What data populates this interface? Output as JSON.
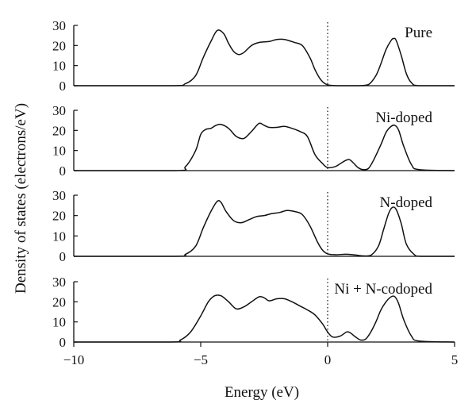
{
  "chart_data": [
    {
      "type": "line",
      "label": "Pure",
      "xlim": [
        -10,
        5
      ],
      "ylim": [
        0,
        30
      ],
      "yticks": [
        0,
        10,
        20,
        30
      ],
      "x": [
        -10,
        -6.2,
        -5.6,
        -5.2,
        -4.9,
        -4.6,
        -4.35,
        -4.1,
        -3.9,
        -3.7,
        -3.5,
        -3.3,
        -3.0,
        -2.7,
        -2.3,
        -2.0,
        -1.7,
        -1.3,
        -1.0,
        -0.7,
        -0.5,
        -0.3,
        -0.1,
        0.1,
        0.4,
        0.8,
        1.2,
        1.6,
        1.9,
        2.1,
        2.3,
        2.5,
        2.6,
        2.7,
        2.9,
        3.1,
        3.3,
        3.6,
        5
      ],
      "values": [
        0,
        0,
        1,
        5,
        14,
        22,
        27.5,
        26,
        21,
        17,
        15.5,
        16.5,
        20,
        21.5,
        22,
        23,
        23,
        21.5,
        20,
        14,
        8,
        3.5,
        1,
        0.2,
        0,
        0,
        0,
        0.5,
        5,
        11,
        18,
        22.5,
        23.5,
        22.5,
        15,
        6,
        1.5,
        0,
        0
      ]
    },
    {
      "type": "line",
      "label": "Ni-doped",
      "xlim": [
        -10,
        5
      ],
      "ylim": [
        0,
        30
      ],
      "yticks": [
        0,
        10,
        20,
        30
      ],
      "x": [
        -10,
        -6.0,
        -5.6,
        -5.2,
        -5.0,
        -4.8,
        -4.6,
        -4.4,
        -4.2,
        -3.9,
        -3.6,
        -3.3,
        -3.0,
        -2.7,
        -2.5,
        -2.3,
        -2.0,
        -1.7,
        -1.4,
        -1.1,
        -0.8,
        -0.5,
        -0.2,
        0.0,
        0.3,
        0.5,
        0.7,
        0.85,
        1.0,
        1.2,
        1.4,
        1.6,
        1.8,
        2.1,
        2.3,
        2.5,
        2.65,
        2.8,
        3.0,
        3.3,
        3.6,
        5
      ],
      "values": [
        0,
        0,
        2,
        10,
        18,
        20.5,
        21,
        22.5,
        23,
        21,
        17,
        16,
        19.5,
        23.5,
        22.5,
        21.5,
        21.5,
        22,
        21,
        19.5,
        17,
        8,
        3.5,
        1.5,
        2,
        3.5,
        5,
        5.5,
        4,
        1.5,
        0.5,
        1,
        5,
        13,
        19,
        22,
        22.5,
        20,
        12,
        3,
        0.5,
        0
      ]
    },
    {
      "type": "line",
      "label": "N-doped",
      "xlim": [
        -10,
        5
      ],
      "ylim": [
        0,
        30
      ],
      "yticks": [
        0,
        10,
        20,
        30
      ],
      "x": [
        -10,
        -6.0,
        -5.6,
        -5.2,
        -4.9,
        -4.6,
        -4.35,
        -4.2,
        -4.0,
        -3.7,
        -3.4,
        -3.1,
        -2.8,
        -2.5,
        -2.2,
        -1.9,
        -1.6,
        -1.3,
        -1.0,
        -0.7,
        -0.4,
        -0.2,
        0.0,
        0.3,
        0.7,
        1.0,
        1.4,
        1.7,
        2.0,
        2.2,
        2.4,
        2.55,
        2.7,
        2.9,
        3.1,
        3.4,
        3.7,
        5
      ],
      "values": [
        0,
        0,
        1,
        5,
        14,
        22,
        27,
        26.5,
        22,
        17.5,
        16.5,
        18,
        19.5,
        20,
        21,
        21.5,
        22.5,
        22,
        20.5,
        15,
        7,
        3,
        1.2,
        0.8,
        1,
        0.8,
        0.2,
        0.5,
        5,
        13,
        21,
        24,
        23,
        16,
        6,
        1,
        0,
        0
      ]
    },
    {
      "type": "line",
      "label": "Ni + N-codoped",
      "xlim": [
        -10,
        5
      ],
      "ylim": [
        0,
        30
      ],
      "yticks": [
        0,
        10,
        20,
        30
      ],
      "x": [
        -10,
        -6.2,
        -5.8,
        -5.4,
        -5.0,
        -4.7,
        -4.45,
        -4.2,
        -3.9,
        -3.6,
        -3.3,
        -3.0,
        -2.7,
        -2.5,
        -2.3,
        -2.0,
        -1.7,
        -1.4,
        -1.1,
        -0.8,
        -0.5,
        -0.2,
        0.0,
        0.2,
        0.5,
        0.75,
        0.9,
        1.1,
        1.3,
        1.5,
        1.7,
        1.9,
        2.1,
        2.3,
        2.5,
        2.65,
        2.8,
        3.0,
        3.3,
        3.6,
        5
      ],
      "values": [
        0,
        0,
        1,
        5,
        13,
        20,
        23,
        23,
        20,
        16.5,
        17.5,
        20,
        22.5,
        22,
        20.5,
        21.5,
        21.5,
        20,
        18,
        16,
        13.5,
        9,
        5,
        2.5,
        3,
        5,
        4.5,
        2.5,
        1,
        1.5,
        5,
        10,
        16,
        20,
        22.5,
        22.5,
        19,
        11,
        3,
        0.5,
        0
      ]
    }
  ],
  "x_axis": {
    "label": "Energy (eV)",
    "ticks": [
      -10,
      -5,
      0,
      5
    ],
    "tick_labels": [
      "−10",
      "−5",
      "0",
      "5"
    ]
  },
  "y_axis_label": "Density of states (electrons/eV)",
  "fermi_level": 0
}
